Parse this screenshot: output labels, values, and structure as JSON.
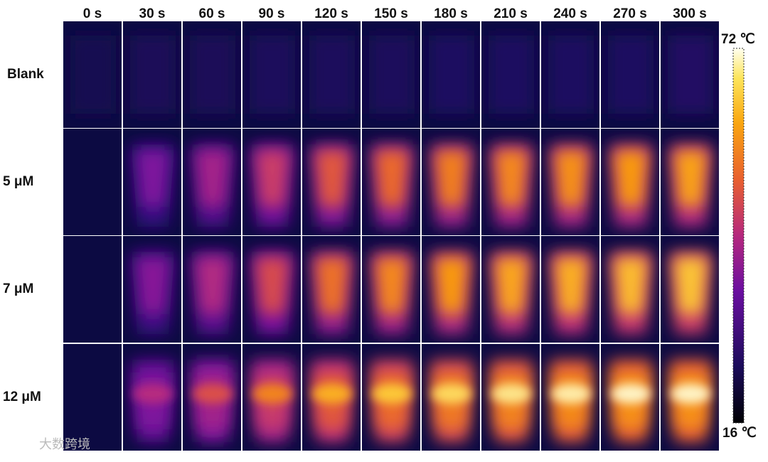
{
  "columns": [
    "0 s",
    "30 s",
    "60 s",
    "90 s",
    "120 s",
    "150 s",
    "180 s",
    "210 s",
    "240 s",
    "270 s",
    "300 s"
  ],
  "rows": [
    "Blank",
    "5 μM",
    "7 μM",
    "12 μM"
  ],
  "colorbar": {
    "max": "72 ℃",
    "min": "16 ℃"
  },
  "watermark": "大数跨境"
}
